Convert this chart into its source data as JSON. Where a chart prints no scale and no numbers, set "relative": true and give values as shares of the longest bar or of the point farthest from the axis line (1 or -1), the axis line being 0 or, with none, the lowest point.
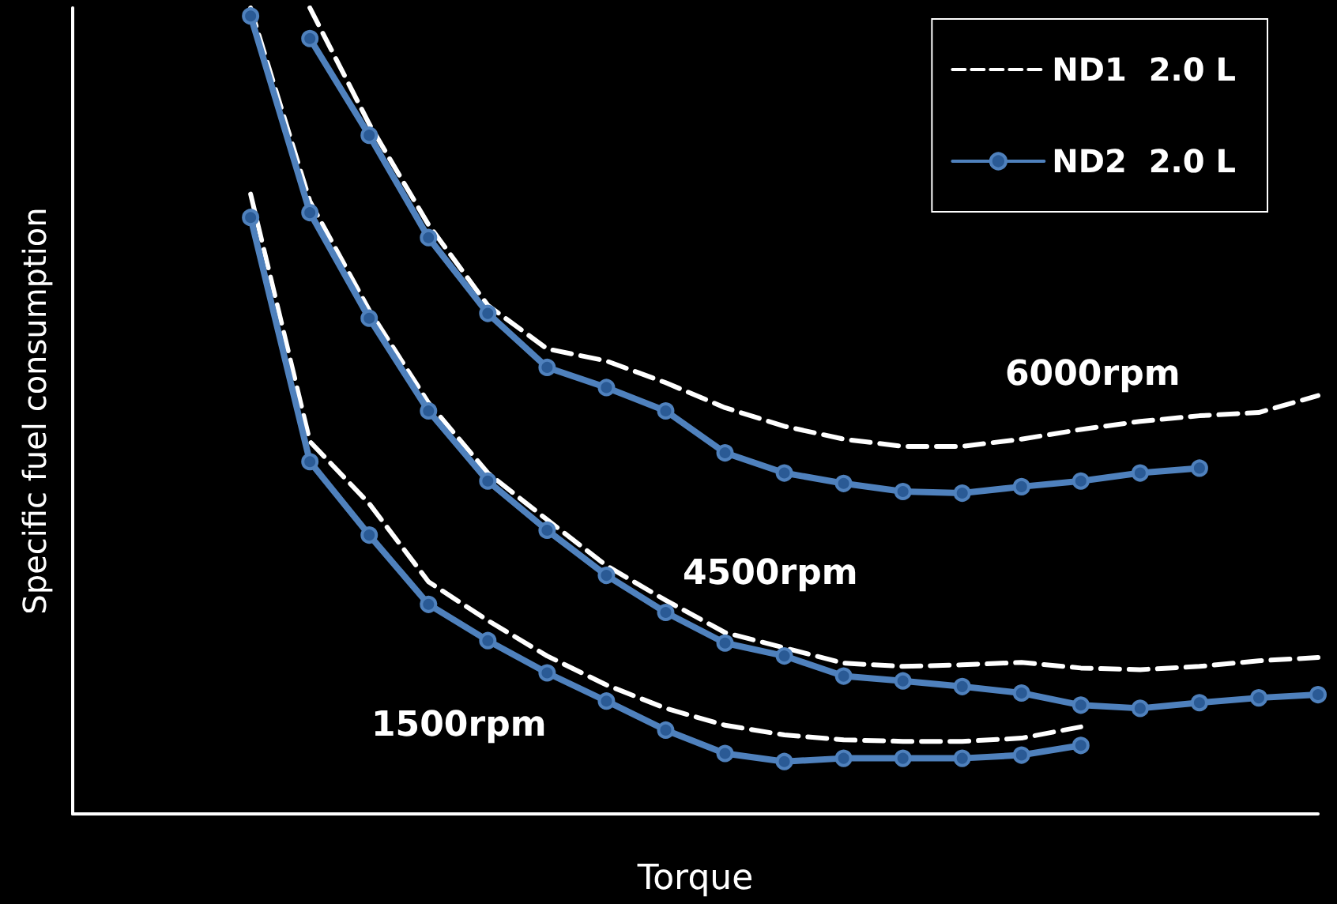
{
  "chart_data": {
    "type": "line",
    "relative": true,
    "xlabel": "Torque",
    "ylabel": "Specific fuel consumption",
    "categories": [
      null,
      null,
      null,
      null,
      null,
      null,
      null,
      null,
      null,
      null,
      null,
      null,
      null,
      null,
      null,
      null,
      null,
      null,
      null,
      null,
      null,
      null
    ],
    "series": [
      {
        "name": "ND1  2.0 L",
        "color": "#ffffff",
        "line_style": "dashed",
        "marker": "none",
        "values": [
          null,
          null,
          null,
          0.769,
          0.462,
          0.385,
          0.288,
          0.24,
          0.196,
          0.16,
          0.131,
          0.11,
          0.098,
          0.092,
          0.09,
          0.09,
          0.094,
          0.108,
          null,
          null,
          null,
          null
        ]
      },
      {
        "color": "#ffffff",
        "line_style": "dashed",
        "marker": "none",
        "values": [
          null,
          null,
          null,
          1.0,
          0.76,
          0.625,
          0.51,
          0.423,
          0.365,
          0.308,
          0.265,
          0.225,
          0.206,
          0.187,
          0.183,
          0.185,
          0.188,
          0.181,
          0.179,
          0.183,
          0.19,
          0.194
        ]
      },
      {
        "color": "#ffffff",
        "line_style": "dashed",
        "marker": "none",
        "values": [
          null,
          null,
          null,
          null,
          1.0,
          0.856,
          0.731,
          0.631,
          0.577,
          0.562,
          0.535,
          0.504,
          0.481,
          0.465,
          0.456,
          0.456,
          0.465,
          0.477,
          0.487,
          0.494,
          0.498,
          0.519
        ]
      },
      {
        "name": "ND2  2.0 L",
        "color": "#4f81bd",
        "line_style": "solid",
        "marker": "circle",
        "values": [
          null,
          null,
          null,
          0.74,
          0.437,
          0.346,
          0.26,
          0.215,
          0.175,
          0.14,
          0.104,
          0.075,
          0.065,
          0.069,
          0.069,
          0.069,
          0.073,
          0.085,
          null,
          null,
          null,
          null
        ]
      },
      {
        "color": "#4f81bd",
        "line_style": "solid",
        "marker": "circle",
        "values": [
          null,
          null,
          null,
          0.99,
          0.746,
          0.615,
          0.5,
          0.413,
          0.352,
          0.296,
          0.25,
          0.212,
          0.196,
          0.171,
          0.165,
          0.158,
          0.15,
          0.135,
          0.131,
          0.138,
          0.144,
          0.148
        ]
      },
      {
        "color": "#4f81bd",
        "line_style": "solid",
        "marker": "circle",
        "values": [
          null,
          null,
          null,
          null,
          0.962,
          0.842,
          0.715,
          0.621,
          0.554,
          0.529,
          0.5,
          0.448,
          0.423,
          0.41,
          0.4,
          0.398,
          0.406,
          0.413,
          0.423,
          0.429,
          null,
          null
        ]
      }
    ],
    "annotations": [
      "6000rpm",
      "4500rpm",
      "1500rpm"
    ],
    "grid": false,
    "legend": "top right"
  }
}
